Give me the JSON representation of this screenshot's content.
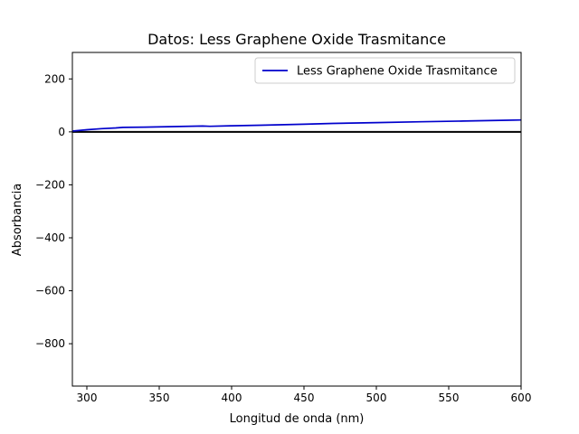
{
  "chart_data": {
    "type": "line",
    "title": "Datos: Less Graphene Oxide Trasmitance",
    "xlabel": "Longitud de onda (nm)",
    "ylabel": "Absorbancia",
    "xlim": [
      290,
      600
    ],
    "ylim": [
      -960,
      300
    ],
    "x_ticks": [
      300,
      350,
      400,
      450,
      500,
      550,
      600
    ],
    "x_tick_labels": [
      "300",
      "350",
      "400",
      "450",
      "500",
      "550",
      "600"
    ],
    "y_ticks": [
      200,
      0,
      -200,
      -400,
      -600,
      -800
    ],
    "y_tick_labels": [
      "200",
      "0",
      "−200",
      "−400",
      "−600",
      "−800"
    ],
    "grid": false,
    "legend_position": "upper right",
    "reference_line": {
      "y": 0,
      "color": "#000000"
    },
    "series": [
      {
        "name": "Less Graphene Oxide Trasmitance",
        "color": "#0000cc",
        "x": [
          290,
          300,
          310,
          320,
          325,
          340,
          360,
          380,
          385,
          400,
          420,
          450,
          470,
          500,
          530,
          560,
          590,
          600
        ],
        "y": [
          3,
          8,
          12,
          15,
          17,
          18,
          20,
          22,
          21,
          23,
          25,
          29,
          32,
          35,
          38,
          41,
          44,
          45
        ]
      }
    ]
  }
}
